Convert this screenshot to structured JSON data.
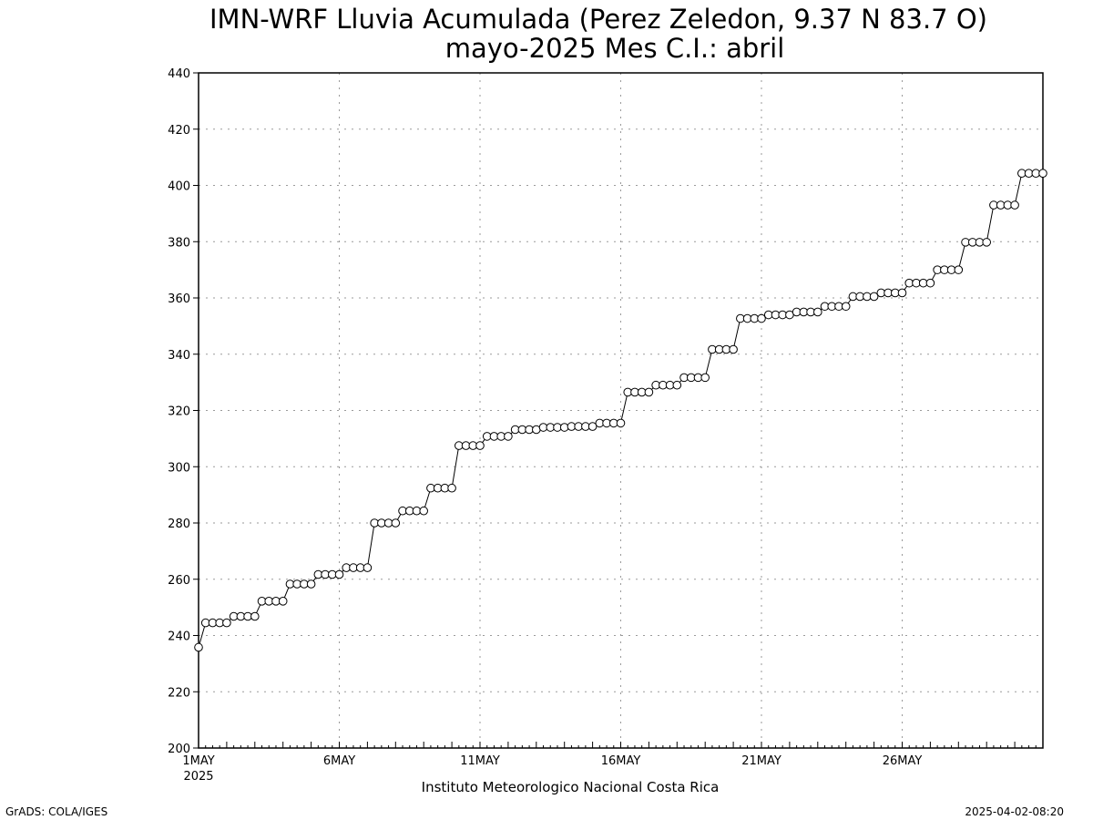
{
  "chart_data": {
    "type": "line",
    "title": "IMN-WRF  Lluvia Acumulada (Perez Zeledon, 9.37  N 83.7  O)",
    "subtitle": "mayo-2025 Mes C.I.: abril",
    "xlabel": "",
    "ylabel": "",
    "ylim": [
      200,
      440
    ],
    "yticks": [
      200,
      220,
      240,
      260,
      280,
      300,
      320,
      340,
      360,
      380,
      400,
      420,
      440
    ],
    "xlim": [
      "2025-05-01 00:00",
      "2025-05-31 00:00"
    ],
    "xticks": [
      {
        "x": "2025-05-01",
        "label": "1MAY",
        "sublabel": "2025"
      },
      {
        "x": "2025-05-06",
        "label": "6MAY",
        "sublabel": ""
      },
      {
        "x": "2025-05-11",
        "label": "11MAY",
        "sublabel": ""
      },
      {
        "x": "2025-05-16",
        "label": "16MAY",
        "sublabel": ""
      },
      {
        "x": "2025-05-21",
        "label": "21MAY",
        "sublabel": ""
      },
      {
        "x": "2025-05-26",
        "label": "26MAY",
        "sublabel": ""
      }
    ],
    "grid": true,
    "marker": "open-circle",
    "series": [
      {
        "name": "",
        "x": [
          "2025-05-01 00:00",
          "2025-05-01 06:00",
          "2025-05-01 12:00",
          "2025-05-01 18:00",
          "2025-05-02 00:00",
          "2025-05-02 06:00",
          "2025-05-02 12:00",
          "2025-05-02 18:00",
          "2025-05-03 00:00",
          "2025-05-03 06:00",
          "2025-05-03 12:00",
          "2025-05-03 18:00",
          "2025-05-04 00:00",
          "2025-05-04 06:00",
          "2025-05-04 12:00",
          "2025-05-04 18:00",
          "2025-05-05 00:00",
          "2025-05-05 06:00",
          "2025-05-05 12:00",
          "2025-05-05 18:00",
          "2025-05-06 00:00",
          "2025-05-06 06:00",
          "2025-05-06 12:00",
          "2025-05-06 18:00",
          "2025-05-07 00:00",
          "2025-05-07 06:00",
          "2025-05-07 12:00",
          "2025-05-07 18:00",
          "2025-05-08 00:00",
          "2025-05-08 06:00",
          "2025-05-08 12:00",
          "2025-05-08 18:00",
          "2025-05-09 00:00",
          "2025-05-09 06:00",
          "2025-05-09 12:00",
          "2025-05-09 18:00",
          "2025-05-10 00:00",
          "2025-05-10 06:00",
          "2025-05-10 12:00",
          "2025-05-10 18:00",
          "2025-05-11 00:00",
          "2025-05-11 06:00",
          "2025-05-11 12:00",
          "2025-05-11 18:00",
          "2025-05-12 00:00",
          "2025-05-12 06:00",
          "2025-05-12 12:00",
          "2025-05-12 18:00",
          "2025-05-13 00:00",
          "2025-05-13 06:00",
          "2025-05-13 12:00",
          "2025-05-13 18:00",
          "2025-05-14 00:00",
          "2025-05-14 06:00",
          "2025-05-14 12:00",
          "2025-05-14 18:00",
          "2025-05-15 00:00",
          "2025-05-15 06:00",
          "2025-05-15 12:00",
          "2025-05-15 18:00",
          "2025-05-16 00:00",
          "2025-05-16 06:00",
          "2025-05-16 12:00",
          "2025-05-16 18:00",
          "2025-05-17 00:00",
          "2025-05-17 06:00",
          "2025-05-17 12:00",
          "2025-05-17 18:00",
          "2025-05-18 00:00",
          "2025-05-18 06:00",
          "2025-05-18 12:00",
          "2025-05-18 18:00",
          "2025-05-19 00:00",
          "2025-05-19 06:00",
          "2025-05-19 12:00",
          "2025-05-19 18:00",
          "2025-05-20 00:00",
          "2025-05-20 06:00",
          "2025-05-20 12:00",
          "2025-05-20 18:00",
          "2025-05-21 00:00",
          "2025-05-21 06:00",
          "2025-05-21 12:00",
          "2025-05-21 18:00",
          "2025-05-22 00:00",
          "2025-05-22 06:00",
          "2025-05-22 12:00",
          "2025-05-22 18:00",
          "2025-05-23 00:00",
          "2025-05-23 06:00",
          "2025-05-23 12:00",
          "2025-05-23 18:00",
          "2025-05-24 00:00",
          "2025-05-24 06:00",
          "2025-05-24 12:00",
          "2025-05-24 18:00",
          "2025-05-25 00:00",
          "2025-05-25 06:00",
          "2025-05-25 12:00",
          "2025-05-25 18:00",
          "2025-05-26 00:00",
          "2025-05-26 06:00",
          "2025-05-26 12:00",
          "2025-05-26 18:00",
          "2025-05-27 00:00",
          "2025-05-27 06:00",
          "2025-05-27 12:00",
          "2025-05-27 18:00",
          "2025-05-28 00:00",
          "2025-05-28 06:00",
          "2025-05-28 12:00",
          "2025-05-28 18:00",
          "2025-05-29 00:00",
          "2025-05-29 06:00",
          "2025-05-29 12:00",
          "2025-05-29 18:00",
          "2025-05-30 00:00",
          "2025-05-30 06:00",
          "2025-05-30 12:00",
          "2025-05-30 18:00",
          "2025-05-31 00:00"
        ],
        "y": [
          235.8,
          244.5,
          244.5,
          244.5,
          244.5,
          246.8,
          246.8,
          246.8,
          246.8,
          252.2,
          252.2,
          252.2,
          252.2,
          258.3,
          258.3,
          258.3,
          258.3,
          261.7,
          261.7,
          261.7,
          261.7,
          264.1,
          264.1,
          264.1,
          264.1,
          280.0,
          280.0,
          280.0,
          280.0,
          284.3,
          284.3,
          284.3,
          284.3,
          292.4,
          292.4,
          292.4,
          292.4,
          307.5,
          307.5,
          307.5,
          307.5,
          310.8,
          310.8,
          310.8,
          310.8,
          313.2,
          313.2,
          313.2,
          313.2,
          314.0,
          314.0,
          314.0,
          314.0,
          314.3,
          314.3,
          314.3,
          314.3,
          315.5,
          315.5,
          315.5,
          315.5,
          326.5,
          326.5,
          326.5,
          326.5,
          329.0,
          329.0,
          329.0,
          329.0,
          331.7,
          331.7,
          331.7,
          331.7,
          341.7,
          341.7,
          341.7,
          341.7,
          352.7,
          352.7,
          352.7,
          352.7,
          354.0,
          354.0,
          354.0,
          354.0,
          355.0,
          355.0,
          355.0,
          355.0,
          357.0,
          357.0,
          357.0,
          357.0,
          360.5,
          360.5,
          360.5,
          360.5,
          361.8,
          361.8,
          361.8,
          361.8,
          365.3,
          365.3,
          365.3,
          365.3,
          370.0,
          370.0,
          370.0,
          370.0,
          379.8,
          379.8,
          379.8,
          379.8,
          393.0,
          393.0,
          393.0,
          393.0,
          404.3,
          404.3,
          404.3,
          404.3
        ]
      }
    ]
  },
  "footer": {
    "institution": "Instituto Meteorologico Nacional Costa Rica",
    "software": "GrADS: COLA/IGES",
    "timestamp": "2025-04-02-08:20"
  }
}
